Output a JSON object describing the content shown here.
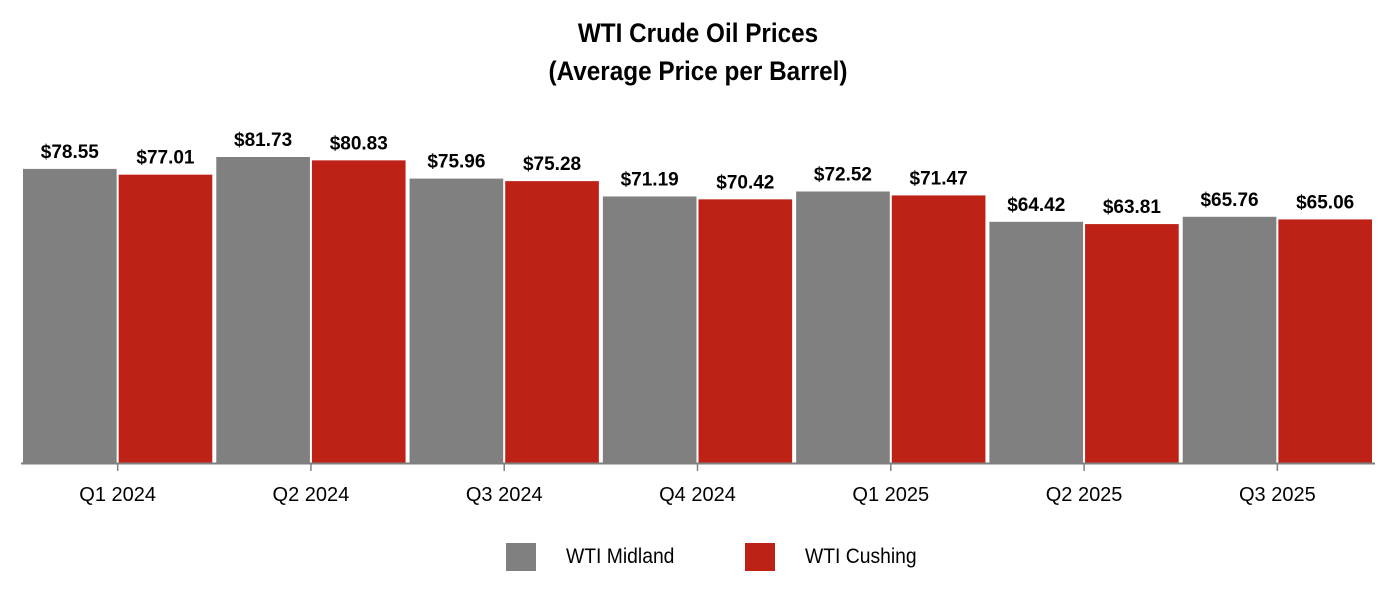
{
  "chart_data": {
    "type": "bar",
    "title": "WTI Crude Oil Prices",
    "subtitle": "(Average Price per Barrel)",
    "categories": [
      "Q1 2024",
      "Q2 2024",
      "Q3 2024",
      "Q4 2024",
      "Q1 2025",
      "Q2 2025",
      "Q3 2025"
    ],
    "series": [
      {
        "name": "WTI Midland",
        "color": "#808080",
        "values": [
          78.55,
          81.73,
          75.96,
          71.19,
          72.52,
          64.42,
          65.76
        ],
        "labels": [
          "$78.55",
          "$81.73",
          "$75.96",
          "$71.19",
          "$72.52",
          "$64.42",
          "$65.76"
        ]
      },
      {
        "name": "WTI Cushing",
        "color": "#be2116",
        "values": [
          77.01,
          80.83,
          75.28,
          70.42,
          71.47,
          63.81,
          65.06
        ],
        "labels": [
          "$77.01",
          "$80.83",
          "$75.28",
          "$70.42",
          "$71.47",
          "$63.81",
          "$65.06"
        ]
      }
    ],
    "ylim": [
      0,
      81.73
    ],
    "y_axis_shown": false,
    "grid": false,
    "legend_position": "bottom-center"
  }
}
